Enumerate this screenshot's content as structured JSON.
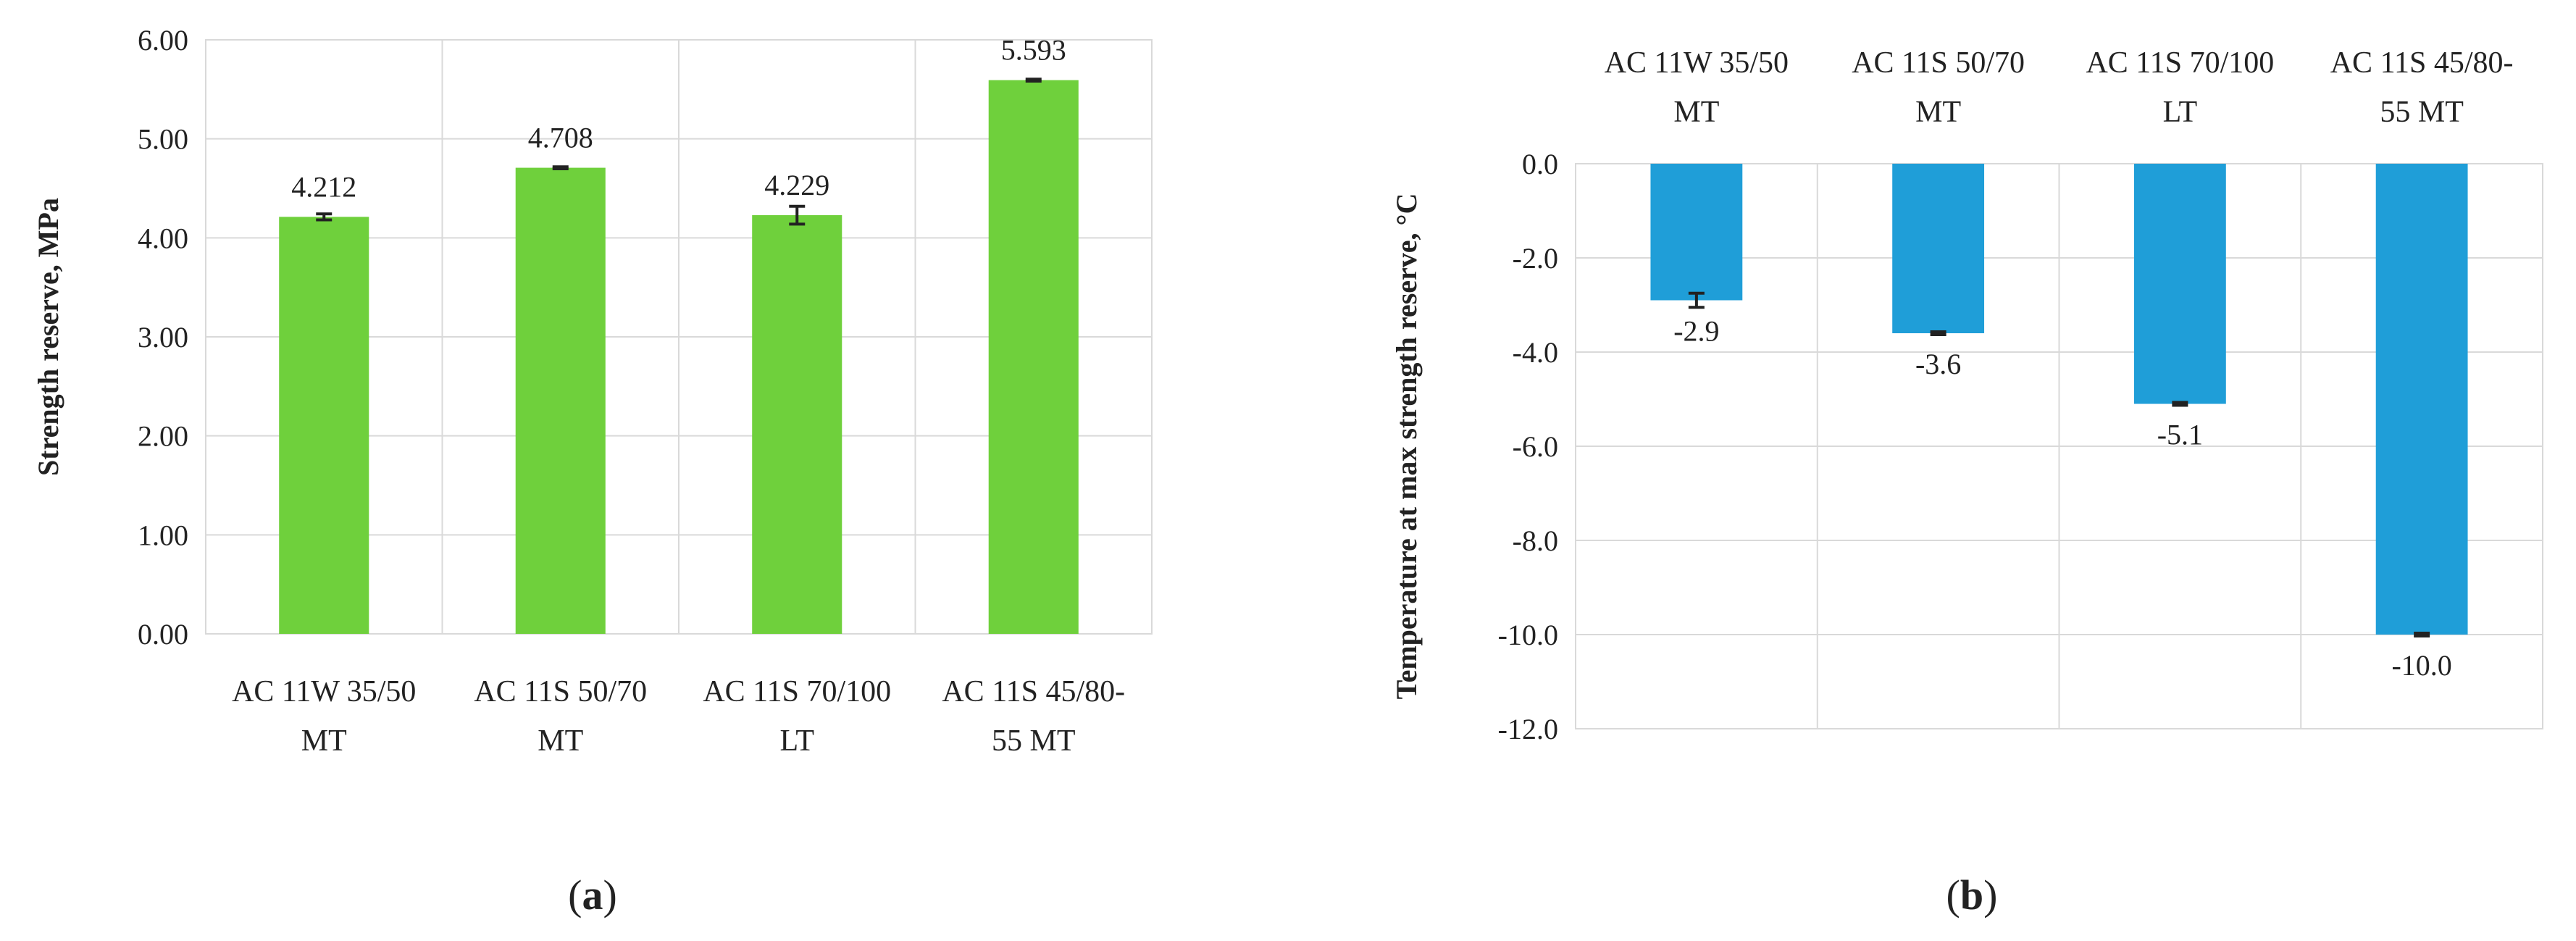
{
  "chart_data": [
    {
      "type": "bar",
      "panel_label": "(a)",
      "panel_letter": "a",
      "categories": [
        [
          "AC 11W 35/50",
          "MT"
        ],
        [
          "AC 11S 50/70",
          "MT"
        ],
        [
          "AC 11S 70/100",
          "LT"
        ],
        [
          "AC 11S 45/80-",
          "55 MT"
        ]
      ],
      "values": [
        4.212,
        4.708,
        4.229,
        5.593
      ],
      "data_labels": [
        "4.212",
        "4.708",
        "4.229",
        "5.593"
      ],
      "errors": [
        0.03,
        0.01,
        0.09,
        0.01
      ],
      "ylabel": "Strength reserve, MPa",
      "ylim": [
        0,
        6
      ],
      "yticks": [
        0,
        1,
        2,
        3,
        4,
        5,
        6
      ],
      "ytick_labels": [
        "0.00",
        "1.00",
        "2.00",
        "3.00",
        "4.00",
        "5.00",
        "6.00"
      ],
      "category_axis": "bottom",
      "grid": true,
      "bar_color": "#6fd03c"
    },
    {
      "type": "bar",
      "panel_label": "(b)",
      "panel_letter": "b",
      "categories": [
        [
          "AC 11W 35/50",
          "MT"
        ],
        [
          "AC 11S 50/70",
          "MT"
        ],
        [
          "AC 11S 70/100",
          "LT"
        ],
        [
          "AC 11S 45/80-",
          "55 MT"
        ]
      ],
      "values": [
        -2.9,
        -3.6,
        -5.1,
        -10.0
      ],
      "data_labels": [
        "-2.9",
        "-3.6",
        "-5.1",
        "-10.0"
      ],
      "errors": [
        0.15,
        0.03,
        0.03,
        0.03
      ],
      "ylabel": "Temperature at max strength reserve, °C",
      "ylim": [
        -12,
        0
      ],
      "yticks": [
        0,
        -2,
        -4,
        -6,
        -8,
        -10,
        -12
      ],
      "ytick_labels": [
        "0.0",
        "-2.0",
        "-4.0",
        "-6.0",
        "-8.0",
        "-10.0",
        "-12.0"
      ],
      "category_axis": "top",
      "grid": true,
      "bar_color": "#1f9ed8"
    }
  ]
}
